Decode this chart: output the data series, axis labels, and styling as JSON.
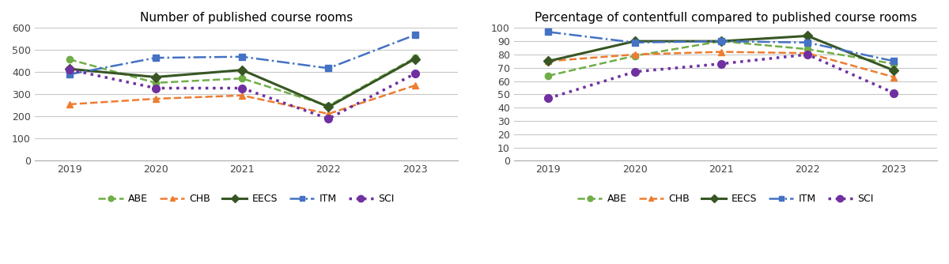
{
  "years": [
    2019,
    2020,
    2021,
    2022,
    2023
  ],
  "chart1_title": "Number of published course rooms",
  "chart2_title": "Percentage of contentfull compared to published course rooms",
  "chart1_ylim": [
    0,
    600
  ],
  "chart1_yticks": [
    0,
    100,
    200,
    300,
    400,
    500,
    600
  ],
  "chart2_ylim": [
    0,
    100
  ],
  "chart2_yticks": [
    0,
    10,
    20,
    30,
    40,
    50,
    60,
    70,
    80,
    90,
    100
  ],
  "series": {
    "ABE": {
      "color": "#70ad47",
      "linestyle": "--",
      "marker": "o",
      "markersize": 6,
      "linewidth": 1.8,
      "count": [
        458,
        352,
        372,
        248,
        465
      ],
      "pct": [
        64,
        79,
        90,
        84,
        73
      ]
    },
    "CHB": {
      "color": "#ed7d31",
      "linestyle": "--",
      "marker": "^",
      "markersize": 6,
      "linewidth": 1.8,
      "count": [
        255,
        280,
        295,
        212,
        340
      ],
      "pct": [
        75,
        80,
        82,
        81,
        63
      ]
    },
    "EECS": {
      "color": "#375623",
      "linestyle": "-",
      "marker": "D",
      "markersize": 6,
      "linewidth": 2.2,
      "count": [
        415,
        378,
        410,
        243,
        460
      ],
      "pct": [
        75,
        90,
        90,
        94,
        68
      ]
    },
    "ITM": {
      "color": "#4472c4",
      "linestyle": "-.",
      "marker": "s",
      "markersize": 6,
      "linewidth": 1.8,
      "count": [
        390,
        465,
        470,
        418,
        568
      ],
      "pct": [
        97,
        89,
        90,
        89,
        75
      ]
    },
    "SCI": {
      "color": "#7030a0",
      "linestyle": ":",
      "marker": "o",
      "markersize": 7,
      "linewidth": 2.5,
      "count": [
        412,
        328,
        328,
        190,
        393
      ],
      "pct": [
        47,
        67,
        73,
        80,
        51
      ]
    }
  },
  "background_color": "#ffffff",
  "grid_color": "#c8c8c8",
  "title_fontsize": 11,
  "tick_fontsize": 9,
  "legend_fontsize": 9
}
